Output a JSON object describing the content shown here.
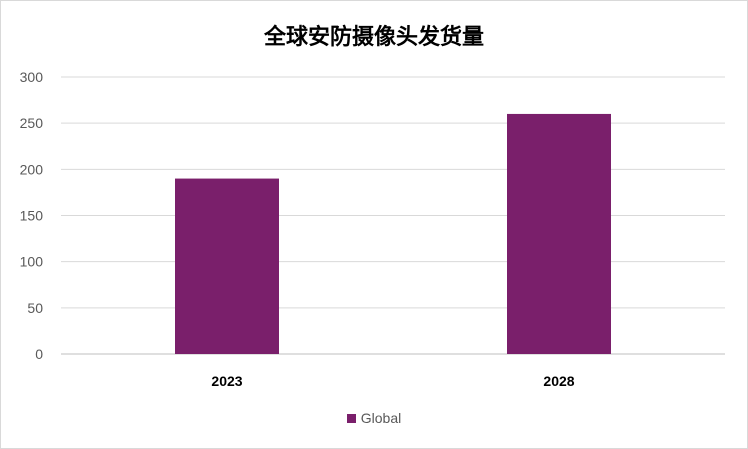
{
  "chart_data": {
    "type": "bar",
    "title": "全球安防摄像头发货量",
    "categories": [
      "2023",
      "2028"
    ],
    "series": [
      {
        "name": "Global",
        "values": [
          190,
          260
        ],
        "color": "#7a1f6b"
      }
    ],
    "ylim": [
      0,
      300
    ],
    "yticks": [
      0,
      50,
      100,
      150,
      200,
      250,
      300
    ],
    "grid": true,
    "legend": "bottom",
    "xlabel": "",
    "ylabel": ""
  }
}
